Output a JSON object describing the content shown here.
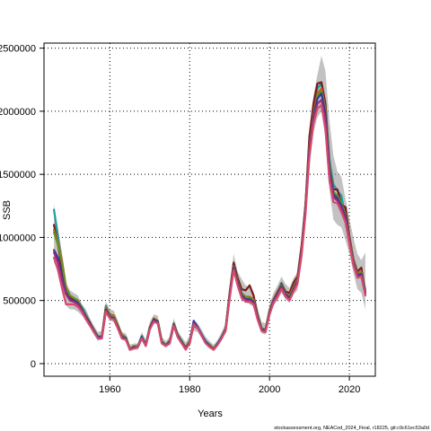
{
  "chart_data": {
    "type": "line",
    "xlabel": "Years",
    "ylabel": "SSB",
    "xlim": [
      1943.5,
      2026.5
    ],
    "ylim": [
      -100000,
      2540000
    ],
    "x_ticks": [
      1960,
      1980,
      2000,
      2020
    ],
    "x_tick_labels": [
      "1960",
      "1980",
      "2000",
      "2020"
    ],
    "y_ticks": [
      0,
      500000,
      1000000,
      1500000,
      2000000,
      2500000
    ],
    "y_tick_labels": [
      "0",
      "500000",
      "1000000",
      "1500000",
      "2000000",
      "2500000"
    ],
    "grid": "dotted",
    "credit": "stockassessment.org, NEACod_2024_Final, r18225, git:c9c61ec53a0d",
    "years": [
      1946,
      1947,
      1948,
      1949,
      1950,
      1951,
      1952,
      1953,
      1954,
      1955,
      1956,
      1957,
      1958,
      1959,
      1960,
      1961,
      1962,
      1963,
      1964,
      1965,
      1966,
      1967,
      1968,
      1969,
      1970,
      1971,
      1972,
      1973,
      1974,
      1975,
      1976,
      1977,
      1978,
      1979,
      1980,
      1981,
      1982,
      1983,
      1984,
      1985,
      1986,
      1987,
      1988,
      1989,
      1990,
      1991,
      1992,
      1993,
      1994,
      1995,
      1996,
      1997,
      1998,
      1999,
      2000,
      2001,
      2002,
      2003,
      2004,
      2005,
      2006,
      2007,
      2008,
      2009,
      2010,
      2011,
      2012,
      2013,
      2014,
      2015,
      2016,
      2017,
      2018,
      2019,
      2020,
      2021,
      2022,
      2023,
      2024
    ],
    "band": {
      "upper": [
        1260000,
        1080000,
        880000,
        640000,
        580000,
        560000,
        540000,
        470000,
        430000,
        360000,
        300000,
        250000,
        260000,
        490000,
        430000,
        420000,
        340000,
        250000,
        240000,
        150000,
        160000,
        160000,
        250000,
        190000,
        330000,
        390000,
        380000,
        210000,
        180000,
        210000,
        360000,
        260000,
        210000,
        170000,
        220000,
        340000,
        320000,
        270000,
        210000,
        180000,
        150000,
        190000,
        250000,
        320000,
        600000,
        870000,
        730000,
        670000,
        620000,
        600000,
        570000,
        440000,
        330000,
        320000,
        470000,
        560000,
        620000,
        690000,
        630000,
        600000,
        680000,
        720000,
        1000000,
        1360000,
        1850000,
        2120000,
        2290000,
        2440000,
        2320000,
        1930000,
        1650000,
        1520000,
        1480000,
        1310000,
        1150000,
        1000000,
        870000,
        820000,
        880000
      ],
      "lower": [
        800000,
        730000,
        640000,
        460000,
        430000,
        430000,
        410000,
        380000,
        350000,
        290000,
        230000,
        180000,
        190000,
        390000,
        340000,
        330000,
        260000,
        190000,
        180000,
        100000,
        110000,
        110000,
        180000,
        130000,
        260000,
        320000,
        310000,
        150000,
        130000,
        150000,
        280000,
        200000,
        150000,
        110000,
        160000,
        260000,
        250000,
        200000,
        150000,
        120000,
        100000,
        140000,
        180000,
        250000,
        490000,
        720000,
        590000,
        520000,
        490000,
        470000,
        450000,
        340000,
        240000,
        230000,
        370000,
        460000,
        500000,
        560000,
        510000,
        480000,
        550000,
        580000,
        830000,
        1160000,
        1560000,
        1830000,
        1950000,
        2000000,
        1780000,
        1380000,
        1140000,
        1100000,
        1080000,
        980000,
        870000,
        720000,
        590000,
        560000,
        430000
      ]
    },
    "series": [
      {
        "color": "#1f9e9e",
        "values": [
          1220000,
          1000000,
          800000,
          600000,
          540000,
          520000,
          500000,
          450000,
          390000,
          330000,
          270000,
          220000,
          210000,
          460000,
          370000,
          360000,
          300000,
          220000,
          210000,
          120000,
          130000,
          140000,
          220000,
          150000,
          290000,
          350000,
          340000,
          180000,
          150000,
          170000,
          320000,
          230000,
          180000,
          130000,
          180000,
          310000,
          290000,
          230000,
          180000,
          150000,
          120000,
          160000,
          210000,
          280000,
          550000,
          790000,
          680000,
          560000,
          510000,
          520000,
          500000,
          380000,
          280000,
          270000,
          410000,
          510000,
          560000,
          640000,
          570000,
          530000,
          620000,
          680000,
          900000,
          1250000,
          1750000,
          2000000,
          2180000,
          2220000,
          2060000,
          1620000,
          1420000,
          1370000,
          1330000,
          1150000,
          980000,
          810000,
          720000,
          720000,
          590000
        ]
      },
      {
        "color": "#7a1a1a",
        "values": [
          1100000,
          940000,
          760000,
          580000,
          530000,
          510000,
          490000,
          440000,
          380000,
          320000,
          260000,
          210000,
          220000,
          450000,
          390000,
          380000,
          300000,
          210000,
          200000,
          120000,
          130000,
          130000,
          210000,
          150000,
          290000,
          350000,
          340000,
          170000,
          150000,
          180000,
          320000,
          230000,
          170000,
          130000,
          170000,
          300000,
          280000,
          230000,
          170000,
          150000,
          120000,
          160000,
          210000,
          280000,
          560000,
          800000,
          680000,
          590000,
          580000,
          620000,
          540000,
          390000,
          280000,
          270000,
          420000,
          510000,
          570000,
          630000,
          570000,
          560000,
          640000,
          690000,
          930000,
          1260000,
          1800000,
          2060000,
          2220000,
          2230000,
          2060000,
          1570000,
          1380000,
          1380000,
          1260000,
          1240000,
          1010000,
          830000,
          730000,
          760000,
          560000
        ]
      },
      {
        "color": "#b5651d",
        "values": [
          1060000,
          960000,
          820000,
          610000,
          540000,
          520000,
          500000,
          440000,
          380000,
          330000,
          270000,
          210000,
          220000,
          450000,
          390000,
          380000,
          310000,
          230000,
          210000,
          120000,
          140000,
          140000,
          210000,
          150000,
          290000,
          360000,
          340000,
          180000,
          150000,
          170000,
          320000,
          230000,
          180000,
          130000,
          180000,
          300000,
          280000,
          230000,
          170000,
          150000,
          120000,
          160000,
          210000,
          280000,
          540000,
          770000,
          650000,
          560000,
          530000,
          530000,
          510000,
          380000,
          280000,
          270000,
          410000,
          510000,
          560000,
          620000,
          560000,
          540000,
          610000,
          670000,
          900000,
          1240000,
          1720000,
          1980000,
          2140000,
          2180000,
          2020000,
          1580000,
          1360000,
          1330000,
          1270000,
          1180000,
          990000,
          820000,
          720000,
          730000,
          570000
        ]
      },
      {
        "color": "#6b8e23",
        "values": [
          1040000,
          940000,
          800000,
          600000,
          540000,
          520000,
          500000,
          440000,
          380000,
          320000,
          270000,
          210000,
          220000,
          440000,
          380000,
          370000,
          300000,
          220000,
          210000,
          120000,
          130000,
          140000,
          210000,
          150000,
          290000,
          350000,
          340000,
          180000,
          150000,
          170000,
          320000,
          230000,
          180000,
          130000,
          180000,
          300000,
          280000,
          230000,
          170000,
          150000,
          120000,
          160000,
          210000,
          280000,
          540000,
          770000,
          650000,
          560000,
          530000,
          520000,
          500000,
          380000,
          280000,
          270000,
          410000,
          500000,
          550000,
          620000,
          560000,
          530000,
          600000,
          660000,
          890000,
          1230000,
          1700000,
          1960000,
          2120000,
          2160000,
          2000000,
          1570000,
          1360000,
          1330000,
          1270000,
          1170000,
          980000,
          810000,
          710000,
          720000,
          570000
        ]
      },
      {
        "color": "#2b3a9e",
        "values": [
          900000,
          840000,
          690000,
          560000,
          510000,
          500000,
          480000,
          430000,
          370000,
          320000,
          260000,
          210000,
          210000,
          430000,
          370000,
          360000,
          290000,
          210000,
          200000,
          110000,
          130000,
          130000,
          210000,
          150000,
          280000,
          350000,
          330000,
          170000,
          140000,
          170000,
          310000,
          220000,
          170000,
          120000,
          170000,
          340000,
          290000,
          230000,
          170000,
          140000,
          110000,
          160000,
          210000,
          270000,
          530000,
          760000,
          640000,
          540000,
          510000,
          510000,
          490000,
          370000,
          270000,
          260000,
          400000,
          500000,
          550000,
          610000,
          550000,
          520000,
          590000,
          650000,
          880000,
          1220000,
          1690000,
          1950000,
          2100000,
          2140000,
          1980000,
          1540000,
          1340000,
          1310000,
          1250000,
          1160000,
          970000,
          800000,
          700000,
          710000,
          560000
        ]
      },
      {
        "color": "#9e2a7a",
        "values": [
          880000,
          800000,
          660000,
          550000,
          500000,
          490000,
          470000,
          420000,
          360000,
          310000,
          250000,
          200000,
          200000,
          420000,
          360000,
          350000,
          280000,
          200000,
          190000,
          110000,
          120000,
          130000,
          200000,
          140000,
          270000,
          340000,
          320000,
          160000,
          140000,
          160000,
          300000,
          210000,
          160000,
          120000,
          160000,
          320000,
          280000,
          220000,
          160000,
          140000,
          110000,
          150000,
          200000,
          260000,
          520000,
          750000,
          630000,
          530000,
          500000,
          500000,
          480000,
          360000,
          260000,
          250000,
          390000,
          490000,
          540000,
          600000,
          540000,
          510000,
          580000,
          640000,
          870000,
          1200000,
          1670000,
          1930000,
          2060000,
          2090000,
          1930000,
          1500000,
          1320000,
          1290000,
          1230000,
          1140000,
          960000,
          790000,
          690000,
          700000,
          550000
        ]
      },
      {
        "color": "#d64a6e",
        "values": [
          840000,
          740000,
          600000,
          470000,
          470000,
          470000,
          450000,
          410000,
          350000,
          300000,
          250000,
          200000,
          200000,
          410000,
          360000,
          350000,
          280000,
          200000,
          190000,
          110000,
          120000,
          130000,
          200000,
          140000,
          270000,
          330000,
          320000,
          160000,
          140000,
          160000,
          300000,
          210000,
          160000,
          110000,
          160000,
          310000,
          280000,
          220000,
          160000,
          130000,
          110000,
          150000,
          200000,
          260000,
          510000,
          740000,
          620000,
          520000,
          490000,
          490000,
          470000,
          350000,
          260000,
          250000,
          390000,
          480000,
          530000,
          590000,
          530000,
          500000,
          570000,
          630000,
          850000,
          1180000,
          1640000,
          1900000,
          2020000,
          2050000,
          1860000,
          1450000,
          1280000,
          1270000,
          1200000,
          1120000,
          950000,
          780000,
          680000,
          690000,
          540000
        ]
      }
    ]
  }
}
